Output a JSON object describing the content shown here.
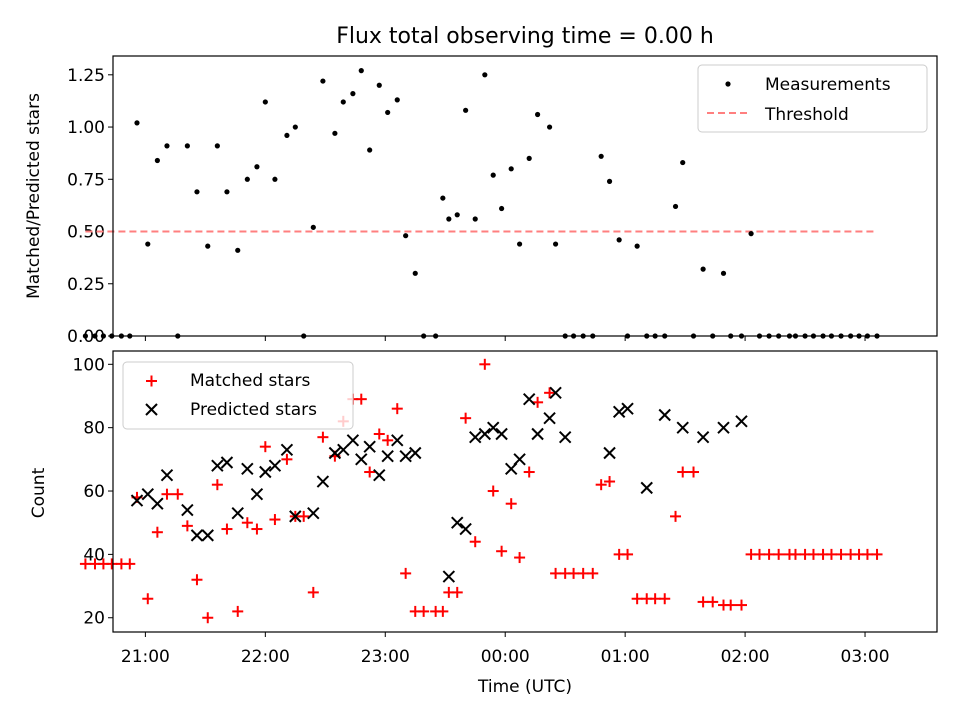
{
  "chart_data": [
    {
      "type": "scatter",
      "title": "Flux total observing time = 0.00 h",
      "xlabel": "",
      "ylabel": "Matched/Predicted stars",
      "xlim": [
        -3.27,
        3.6
      ],
      "ylim": [
        0,
        1.34
      ],
      "yticks": [
        0.0,
        0.25,
        0.5,
        0.75,
        1.0,
        1.25
      ],
      "ytick_labels": [
        "0.00",
        "0.25",
        "0.50",
        "0.75",
        "1.00",
        "1.25"
      ],
      "xticks": [
        -3,
        -2,
        -1,
        0,
        1,
        2,
        3
      ],
      "legend_position": "top-right",
      "series": [
        {
          "name": "Measurements",
          "style": "point",
          "color": "#000000",
          "x": [
            -3.5,
            -3.42,
            -3.35,
            -3.28,
            -3.2,
            -3.13,
            -3.07,
            -2.98,
            -2.9,
            -2.82,
            -2.73,
            -2.65,
            -2.57,
            -2.48,
            -2.4,
            -2.32,
            -2.23,
            -2.15,
            -2.07,
            -2.0,
            -1.92,
            -1.82,
            -1.75,
            -1.68,
            -1.6,
            -1.52,
            -1.42,
            -1.35,
            -1.27,
            -1.2,
            -1.13,
            -1.05,
            -0.98,
            -0.9,
            -0.83,
            -0.75,
            -0.68,
            -0.58,
            -0.52,
            -0.47,
            -0.4,
            -0.33,
            -0.25,
            -0.17,
            -0.1,
            -0.03,
            0.05,
            0.12,
            0.2,
            0.27,
            0.37,
            0.42,
            0.5,
            0.57,
            0.65,
            0.73,
            0.8,
            0.87,
            0.95,
            1.02,
            1.1,
            1.18,
            1.25,
            1.33,
            1.42,
            1.48,
            1.57,
            1.65,
            1.73,
            1.82,
            1.88,
            1.97,
            2.05,
            2.12,
            2.2,
            2.28,
            2.37,
            2.42,
            2.5,
            2.57,
            2.65,
            2.72,
            2.8,
            2.88,
            2.95,
            3.02,
            3.1
          ],
          "y": [
            0.0,
            0.0,
            0.0,
            0.0,
            0.0,
            0.0,
            1.02,
            0.44,
            0.84,
            0.91,
            0.0,
            0.91,
            0.69,
            0.43,
            0.91,
            0.69,
            0.41,
            0.75,
            0.81,
            1.12,
            0.75,
            0.96,
            1.0,
            0.0,
            0.52,
            1.22,
            0.97,
            1.12,
            1.16,
            1.27,
            0.89,
            1.2,
            1.07,
            1.13,
            0.48,
            0.3,
            0.0,
            0.0,
            0.66,
            0.56,
            0.58,
            1.08,
            0.56,
            1.25,
            0.77,
            0.61,
            0.8,
            0.44,
            0.85,
            1.06,
            1.0,
            0.44,
            0.0,
            0.0,
            0.0,
            0.0,
            0.86,
            0.74,
            0.46,
            0.0,
            0.43,
            0.0,
            0.0,
            0.0,
            0.62,
            0.83,
            0.0,
            0.32,
            0.0,
            0.3,
            0.0,
            0.0,
            0.49,
            0.0,
            0.0,
            0.0,
            0.0,
            0.0,
            0.0,
            0.0,
            0.0,
            0.0,
            0.0,
            0.0,
            0.0,
            0.0,
            0.0
          ]
        },
        {
          "name": "Threshold",
          "style": "dashed-line",
          "color": "#ff7f7f",
          "x": [
            -3.5,
            3.1
          ],
          "y": [
            0.5,
            0.5
          ]
        }
      ]
    },
    {
      "type": "scatter",
      "title": "",
      "xlabel": "Time (UTC)",
      "ylabel": "Count",
      "xlim": [
        -3.27,
        3.6
      ],
      "ylim": [
        15.5,
        104.2
      ],
      "yticks": [
        20,
        40,
        60,
        80,
        100
      ],
      "ytick_labels": [
        "20",
        "40",
        "60",
        "80",
        "100"
      ],
      "xticks": [
        -3,
        -2,
        -1,
        0,
        1,
        2,
        3
      ],
      "xtick_labels": [
        "21:00",
        "22:00",
        "23:00",
        "00:00",
        "01:00",
        "02:00",
        "03:00"
      ],
      "legend_position": "top-left",
      "series": [
        {
          "name": "Matched stars",
          "marker": "plus",
          "color": "#ff0000",
          "x": [
            -3.5,
            -3.42,
            -3.35,
            -3.28,
            -3.2,
            -3.13,
            -3.07,
            -2.98,
            -2.9,
            -2.82,
            -2.73,
            -2.65,
            -2.57,
            -2.48,
            -2.4,
            -2.32,
            -2.23,
            -2.15,
            -2.07,
            -2.0,
            -1.92,
            -1.82,
            -1.75,
            -1.68,
            -1.6,
            -1.52,
            -1.42,
            -1.35,
            -1.27,
            -1.2,
            -1.13,
            -1.05,
            -0.98,
            -0.9,
            -0.83,
            -0.75,
            -0.68,
            -0.58,
            -0.52,
            -0.47,
            -0.4,
            -0.33,
            -0.25,
            -0.17,
            -0.1,
            -0.03,
            0.05,
            0.12,
            0.2,
            0.27,
            0.37,
            0.42,
            0.5,
            0.57,
            0.65,
            0.73,
            0.8,
            0.87,
            0.95,
            1.02,
            1.1,
            1.18,
            1.25,
            1.33,
            1.42,
            1.48,
            1.57,
            1.65,
            1.73,
            1.82,
            1.88,
            1.97,
            2.05,
            2.12,
            2.2,
            2.28,
            2.37,
            2.42,
            2.5,
            2.57,
            2.65,
            2.72,
            2.8,
            2.88,
            2.95,
            3.02,
            3.1
          ],
          "y": [
            37,
            37,
            37,
            37,
            37,
            37,
            58,
            26,
            47,
            59,
            59,
            49,
            32,
            20,
            62,
            48,
            22,
            50,
            48,
            74,
            51,
            70,
            52,
            52,
            28,
            77,
            71,
            82,
            89,
            89,
            66,
            78,
            76,
            86,
            34,
            22,
            22,
            22,
            22,
            28,
            28,
            83,
            44,
            100,
            60,
            41,
            56,
            39,
            66,
            88,
            91,
            34,
            34,
            34,
            34,
            34,
            62,
            63,
            40,
            40,
            26,
            26,
            26,
            26,
            52,
            66,
            66,
            25,
            25,
            24,
            24,
            24,
            40,
            40,
            40,
            40,
            40,
            40,
            40,
            40,
            40,
            40,
            40,
            40,
            40,
            40,
            40
          ]
        },
        {
          "name": "Predicted stars",
          "marker": "x",
          "color": "#000000",
          "x": [
            -3.07,
            -2.98,
            -2.9,
            -2.82,
            -2.65,
            -2.57,
            -2.48,
            -2.4,
            -2.32,
            -2.23,
            -2.15,
            -2.07,
            -2.0,
            -1.92,
            -1.82,
            -1.75,
            -1.6,
            -1.52,
            -1.42,
            -1.35,
            -1.27,
            -1.2,
            -1.13,
            -1.05,
            -0.98,
            -0.9,
            -0.83,
            -0.75,
            -0.47,
            -0.4,
            -0.33,
            -0.25,
            -0.17,
            -0.1,
            -0.03,
            0.05,
            0.12,
            0.2,
            0.27,
            0.37,
            0.42,
            0.5,
            0.87,
            0.95,
            1.02,
            1.18,
            1.33,
            1.48,
            1.65,
            1.82,
            1.97
          ],
          "y": [
            57,
            59,
            56,
            65,
            54,
            46,
            46,
            68,
            69,
            53,
            67,
            59,
            66,
            68,
            73,
            52,
            53,
            63,
            72,
            73,
            76,
            70,
            74,
            65,
            71,
            76,
            71,
            72,
            33,
            50,
            48,
            77,
            78,
            80,
            78,
            67,
            70,
            89,
            78,
            83,
            91,
            77,
            72,
            85,
            86,
            61,
            84,
            80,
            77,
            80,
            82
          ]
        }
      ]
    }
  ]
}
